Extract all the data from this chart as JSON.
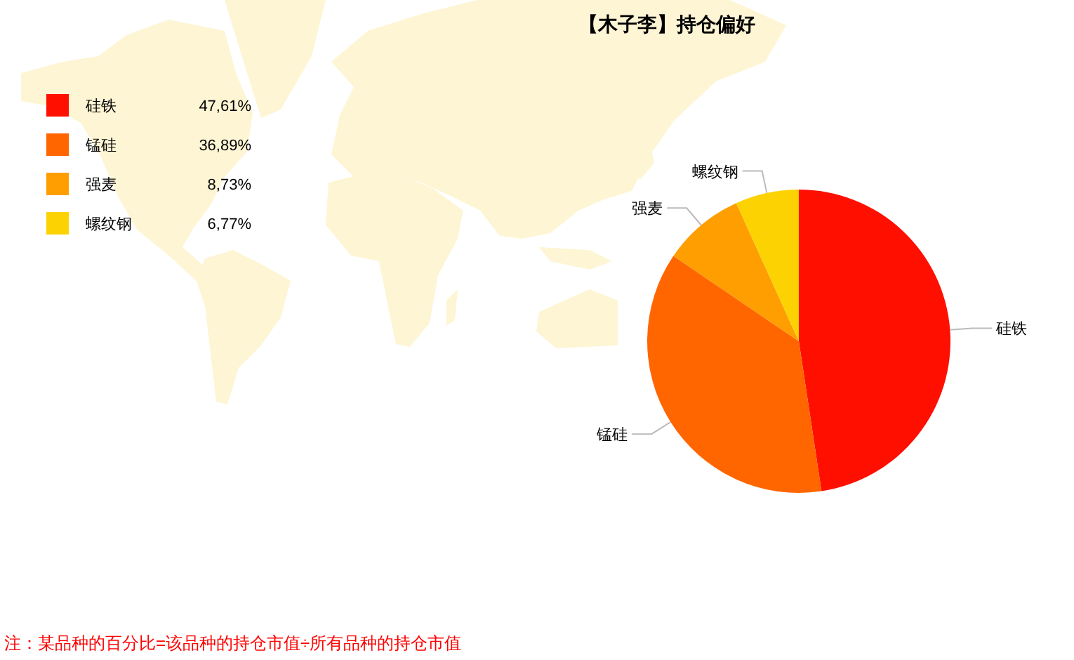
{
  "chart_data": {
    "type": "pie",
    "title": "【木子李】持仓偏好",
    "categories": [
      "硅铁",
      "锰硅",
      "强麦",
      "螺纹钢"
    ],
    "values": [
      47.61,
      36.89,
      8.73,
      6.77
    ],
    "colors": [
      "#ff0f00",
      "#ff6600",
      "#ff9e01",
      "#fcd202"
    ],
    "value_labels": [
      "47,61%",
      "36,89%",
      "8,73%",
      "6,77%"
    ],
    "legend": "top left",
    "annotations": [
      "注：某品种的百分比=该品种的持仓市值÷所有品种的持仓市值"
    ]
  }
}
